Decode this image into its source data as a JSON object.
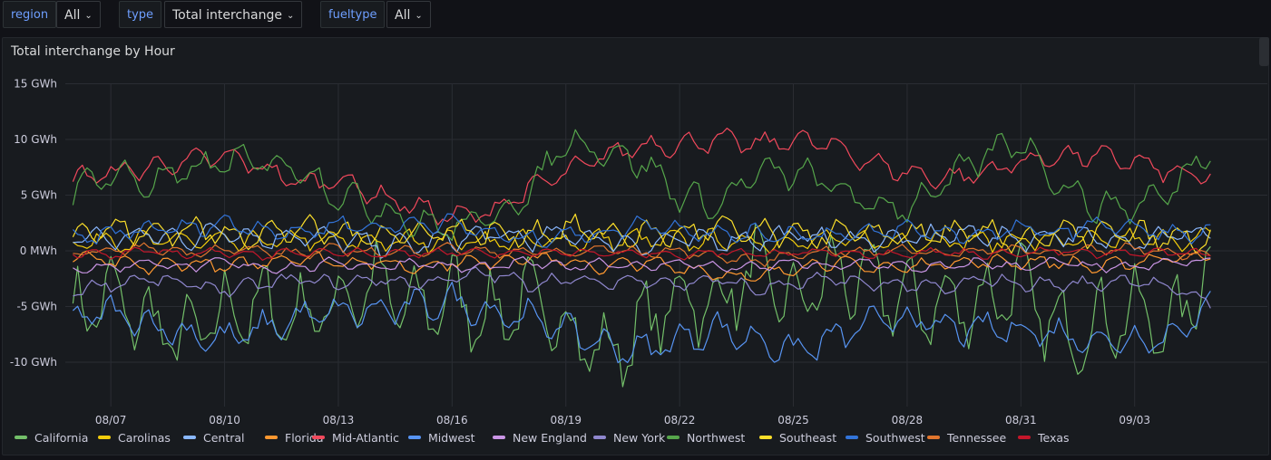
{
  "variables": [
    {
      "label": "region",
      "value": "All"
    },
    {
      "label": "type",
      "value": "Total interchange"
    },
    {
      "label": "fueltype",
      "value": "All"
    }
  ],
  "panel": {
    "title": "Total interchange by Hour"
  },
  "chart_data": {
    "type": "line",
    "title": "Total interchange by Hour",
    "xlabel": "",
    "ylabel": "",
    "ylim": [
      -15,
      15
    ],
    "yticks": [
      {
        "value": 15,
        "label": "15 GWh"
      },
      {
        "value": 10,
        "label": "10 GWh"
      },
      {
        "value": 5,
        "label": "5 GWh"
      },
      {
        "value": 0,
        "label": "0 MWh"
      },
      {
        "value": -5,
        "label": "-5 GWh"
      },
      {
        "value": -10,
        "label": "-10 GWh"
      }
    ],
    "xlim_day": [
      0,
      31.7
    ],
    "xticks": [
      {
        "day": 1.2,
        "label": "08/07"
      },
      {
        "day": 4.2,
        "label": "08/10"
      },
      {
        "day": 7.2,
        "label": "08/13"
      },
      {
        "day": 10.2,
        "label": "08/16"
      },
      {
        "day": 13.2,
        "label": "08/19"
      },
      {
        "day": 16.2,
        "label": "08/22"
      },
      {
        "day": 19.2,
        "label": "08/25"
      },
      {
        "day": 22.2,
        "label": "08/28"
      },
      {
        "day": 25.2,
        "label": "08/31"
      },
      {
        "day": 28.2,
        "label": "09/03"
      }
    ],
    "x_end_day": 30.2,
    "sample_days": [
      0.2,
      1.2,
      2.2,
      3.2,
      4.2,
      5.2,
      6.2,
      7.2,
      8.2,
      9.2,
      10.2,
      11.2,
      12.2,
      13.2,
      14.2,
      15.2,
      16.2,
      17.2,
      18.2,
      19.2,
      20.2,
      21.2,
      22.2,
      23.2,
      24.2,
      25.2,
      26.2,
      27.2,
      28.2,
      29.2,
      30.2
    ],
    "series": [
      {
        "name": "California",
        "color": "#73bf69",
        "amplitude": 4.5,
        "values": [
          -5.5,
          -4.0,
          -6.5,
          -8.0,
          -5.5,
          -5.0,
          -6.0,
          -4.5,
          -3.0,
          -5.5,
          -4.0,
          -6.0,
          -4.5,
          -6.5,
          -9.5,
          -7.0,
          -4.0,
          -5.0,
          -1.5,
          -5.0,
          -2.0,
          -3.0,
          -4.5,
          -5.0,
          -4.5,
          -3.0,
          -7.5,
          -6.5,
          -5.5,
          -7.0,
          -1.0
        ]
      },
      {
        "name": "Carolinas",
        "color": "#f2cc0c",
        "amplitude": 1.2,
        "values": [
          0.8,
          1.0,
          0.8,
          1.0,
          0.7,
          0.8,
          1.0,
          0.9,
          0.8,
          0.9,
          1.0,
          0.9,
          0.8,
          0.9,
          1.0,
          1.0,
          0.9,
          0.9,
          0.8,
          0.9,
          1.0,
          0.8,
          0.9,
          1.0,
          0.9,
          1.0,
          0.9,
          0.8,
          1.0,
          1.0,
          1.0
        ]
      },
      {
        "name": "Central",
        "color": "#8ab8ff",
        "amplitude": 1.2,
        "values": [
          1.5,
          1.0,
          1.5,
          1.0,
          2.0,
          1.0,
          1.5,
          1.0,
          0.5,
          0.5,
          1.0,
          1.5,
          1.0,
          1.5,
          1.0,
          0.5,
          1.0,
          1.0,
          1.0,
          1.5,
          1.0,
          1.0,
          1.0,
          1.5,
          1.5,
          1.0,
          1.5,
          1.0,
          1.0,
          1.5,
          1.5
        ]
      },
      {
        "name": "Florida",
        "color": "#ff9830",
        "amplitude": 0.8,
        "values": [
          -0.5,
          -1.0,
          -1.5,
          -1.0,
          -1.5,
          -1.0,
          -0.5,
          -1.0,
          -1.0,
          -1.5,
          -1.0,
          -1.0,
          -0.5,
          -1.0,
          -1.5,
          -1.0,
          -1.5,
          -2.0,
          -2.5,
          -1.5,
          -1.0,
          -1.5,
          -1.5,
          -1.0,
          -1.0,
          -1.0,
          -1.0,
          -1.5,
          -1.0,
          -0.5,
          -0.5
        ]
      },
      {
        "name": "Mid-Atlantic",
        "color": "#f2495c",
        "amplitude": 1.2,
        "values": [
          6.5,
          7.0,
          7.5,
          8.0,
          8.5,
          7.5,
          6.0,
          6.5,
          5.0,
          4.0,
          3.0,
          3.5,
          5.5,
          7.0,
          8.5,
          9.5,
          9.5,
          10.0,
          9.5,
          10.0,
          9.5,
          8.0,
          7.0,
          6.5,
          7.0,
          8.0,
          8.5,
          8.5,
          8.0,
          7.0,
          6.5
        ]
      },
      {
        "name": "Midwest",
        "color": "#5794f2",
        "amplitude": 1.8,
        "values": [
          -6.0,
          -5.5,
          -6.5,
          -7.5,
          -8.0,
          -7.0,
          -6.0,
          -5.5,
          -5.5,
          -5.0,
          -4.5,
          -5.5,
          -6.0,
          -7.0,
          -8.5,
          -9.0,
          -8.0,
          -7.0,
          -8.0,
          -9.0,
          -8.0,
          -6.5,
          -6.0,
          -7.0,
          -7.0,
          -7.0,
          -7.5,
          -8.0,
          -8.0,
          -7.5,
          -5.0
        ]
      },
      {
        "name": "New England",
        "color": "#ca95e5",
        "amplitude": 0.6,
        "values": [
          -1.5,
          -1.5,
          -1.0,
          -1.5,
          -1.0,
          -1.5,
          -1.5,
          -1.0,
          -1.5,
          -1.0,
          -1.5,
          -1.5,
          -1.0,
          -1.5,
          -1.0,
          -1.5,
          -1.0,
          -1.5,
          -1.5,
          -1.0,
          -1.5,
          -1.0,
          -1.5,
          -1.5,
          -1.0,
          -1.5,
          -1.0,
          -1.5,
          -1.5,
          -1.0,
          -1.0
        ]
      },
      {
        "name": "New York",
        "color": "#8f87ce",
        "amplitude": 0.8,
        "values": [
          -3.5,
          -3.0,
          -2.5,
          -3.0,
          -3.5,
          -3.0,
          -2.5,
          -3.0,
          -2.5,
          -3.0,
          -2.5,
          -2.0,
          -3.0,
          -2.5,
          -3.0,
          -2.5,
          -3.0,
          -2.5,
          -3.5,
          -3.0,
          -2.5,
          -3.0,
          -3.0,
          -3.5,
          -2.5,
          -3.0,
          -3.0,
          -3.0,
          -2.5,
          -3.5,
          -4.5
        ]
      },
      {
        "name": "Northwest",
        "color": "#56a64b",
        "amplitude": 1.8,
        "values": [
          5.5,
          7.0,
          6.0,
          7.0,
          8.0,
          8.0,
          7.5,
          5.0,
          4.0,
          2.5,
          2.0,
          3.0,
          5.0,
          10.0,
          9.0,
          8.0,
          5.0,
          4.0,
          7.0,
          7.0,
          6.0,
          4.0,
          4.0,
          6.0,
          8.5,
          10.0,
          6.0,
          4.0,
          4.0,
          5.5,
          9.5
        ]
      },
      {
        "name": "Southeast",
        "color": "#fade2a",
        "amplitude": 1.5,
        "values": [
          1.5,
          2.0,
          1.5,
          2.0,
          1.5,
          1.5,
          2.0,
          1.5,
          1.5,
          1.5,
          2.0,
          1.5,
          1.5,
          2.0,
          1.5,
          1.5,
          1.5,
          2.0,
          1.5,
          1.5,
          1.5,
          1.5,
          1.5,
          1.5,
          1.5,
          1.0,
          1.5,
          1.5,
          1.5,
          1.0,
          1.0
        ]
      },
      {
        "name": "Southwest",
        "color": "#3274d9",
        "amplitude": 1.0,
        "values": [
          1.0,
          1.5,
          2.0,
          2.0,
          2.5,
          2.0,
          1.5,
          2.5,
          2.0,
          2.5,
          2.5,
          1.5,
          1.0,
          1.5,
          1.5,
          2.5,
          2.0,
          1.5,
          1.5,
          1.5,
          1.5,
          1.5,
          2.0,
          1.5,
          1.5,
          2.0,
          1.5,
          2.5,
          2.0,
          1.5,
          1.5
        ]
      },
      {
        "name": "Tennessee",
        "color": "#e0752d",
        "amplitude": 0.6,
        "values": [
          -0.3,
          0.0,
          0.3,
          -0.2,
          0.2,
          0.0,
          -0.3,
          0.2,
          -0.2,
          0.0,
          0.3,
          -0.2,
          0.0,
          -0.3,
          0.2,
          -0.2,
          0.0,
          -0.5,
          -1.0,
          -0.3,
          0.0,
          -0.2,
          0.2,
          -0.3,
          0.0,
          0.2,
          -0.2,
          0.0,
          0.3,
          -0.2,
          -0.3
        ]
      },
      {
        "name": "Texas",
        "color": "#c4162a",
        "amplitude": 0.5,
        "values": [
          -0.2,
          -0.4,
          0.0,
          -0.3,
          -0.1,
          -0.4,
          -0.2,
          0.0,
          -0.3,
          -0.2,
          -0.1,
          -0.3,
          -0.2,
          0.0,
          -0.3,
          -0.2,
          -0.4,
          -0.1,
          -0.3,
          -0.2,
          0.0,
          -0.3,
          -0.2,
          -0.1,
          -0.3,
          -0.2,
          0.0,
          -0.3,
          -0.2,
          -0.1,
          -0.3
        ]
      }
    ]
  }
}
